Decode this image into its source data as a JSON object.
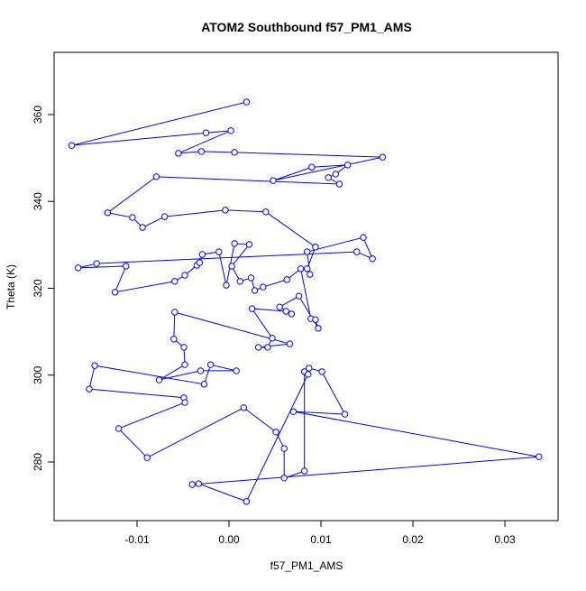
{
  "chart_data": {
    "type": "line",
    "markers": "open-circle",
    "title": "ATOM2 Southbound f57_PM1_AMS",
    "xlabel": "f57_PM1_AMS",
    "ylabel": "Theta (K)",
    "color": "#0000ff",
    "xlim": [
      -0.01902,
      0.03578
    ],
    "ylim": [
      266.49,
      374.34
    ],
    "xticks": [
      -0.01,
      {
        "value": 0,
        "label": "0.00"
      },
      0.01,
      0.02,
      0.03
    ],
    "yticks": [
      280,
      300,
      320,
      340,
      360
    ],
    "x": [
      0.0019,
      -0.0171,
      -0.0025,
      0.0002,
      -0.0055,
      -0.003,
      0.0006,
      0.0167,
      0.0048,
      0.009,
      0.0129,
      0.0116,
      0.0108,
      0.012,
      -0.0079,
      -0.0132,
      -0.0105,
      -0.0094,
      -0.007,
      -0.0004,
      0.004,
      0.0094,
      0.0085,
      0.0088,
      0.0085,
      0.0146,
      0.0156,
      0.0139,
      -0.0144,
      -0.0164,
      -0.0112,
      -0.0124,
      -0.0059,
      -0.0048,
      -0.0035,
      -0.0032,
      -0.0029,
      -0.0011,
      -0.0003,
      0.0006,
      0.0022,
      0.0003,
      0.0012,
      0.0024,
      0.0028,
      0.0037,
      0.0063,
      0.0078,
      0.0089,
      0.0094,
      0.0097,
      0.0076,
      0.0055,
      0.0068,
      0.0062,
      0.0025,
      0.0047,
      0.0042,
      0.0032,
      0.0066,
      -0.0059,
      -0.006,
      -0.0049,
      -0.0048,
      -0.0076,
      -0.0031,
      0.0008,
      -0.002,
      -0.0027,
      -0.0146,
      -0.0152,
      -0.0049,
      -0.0048,
      -0.012,
      -0.0089,
      0.0016,
      0.0051,
      0.006,
      0.006,
      0.0082,
      0.0082,
      0.0087,
      0.0101,
      0.0126,
      0.007,
      0.0337,
      -0.004,
      -0.0033,
      0.0019,
      0.0086
    ],
    "values": [
      362.9,
      352.9,
      355.8,
      356.3,
      351.1,
      351.5,
      351.3,
      350.2,
      344.8,
      347.9,
      348.4,
      346.3,
      345.5,
      344.0,
      345.7,
      337.4,
      336.3,
      334.0,
      336.5,
      338.0,
      337.6,
      329.5,
      324.5,
      323.2,
      328.4,
      331.7,
      326.8,
      328.4,
      325.7,
      324.7,
      325.1,
      319.1,
      321.6,
      323.0,
      325.3,
      325.9,
      327.8,
      328.4,
      320.7,
      330.3,
      330.1,
      325.1,
      321.6,
      322.4,
      319.5,
      320.3,
      322.0,
      324.5,
      313.0,
      312.8,
      310.8,
      318.2,
      315.7,
      314.1,
      314.7,
      315.3,
      308.5,
      306.4,
      306.4,
      307.2,
      314.5,
      308.3,
      306.4,
      302.4,
      298.9,
      301.0,
      301.0,
      302.4,
      297.9,
      302.2,
      296.8,
      294.8,
      293.7,
      287.7,
      281.0,
      292.5,
      286.9,
      283.1,
      276.3,
      277.9,
      300.8,
      301.6,
      300.8,
      291.0,
      291.6,
      281.2,
      274.8,
      275.0,
      270.9,
      300.2
    ]
  }
}
